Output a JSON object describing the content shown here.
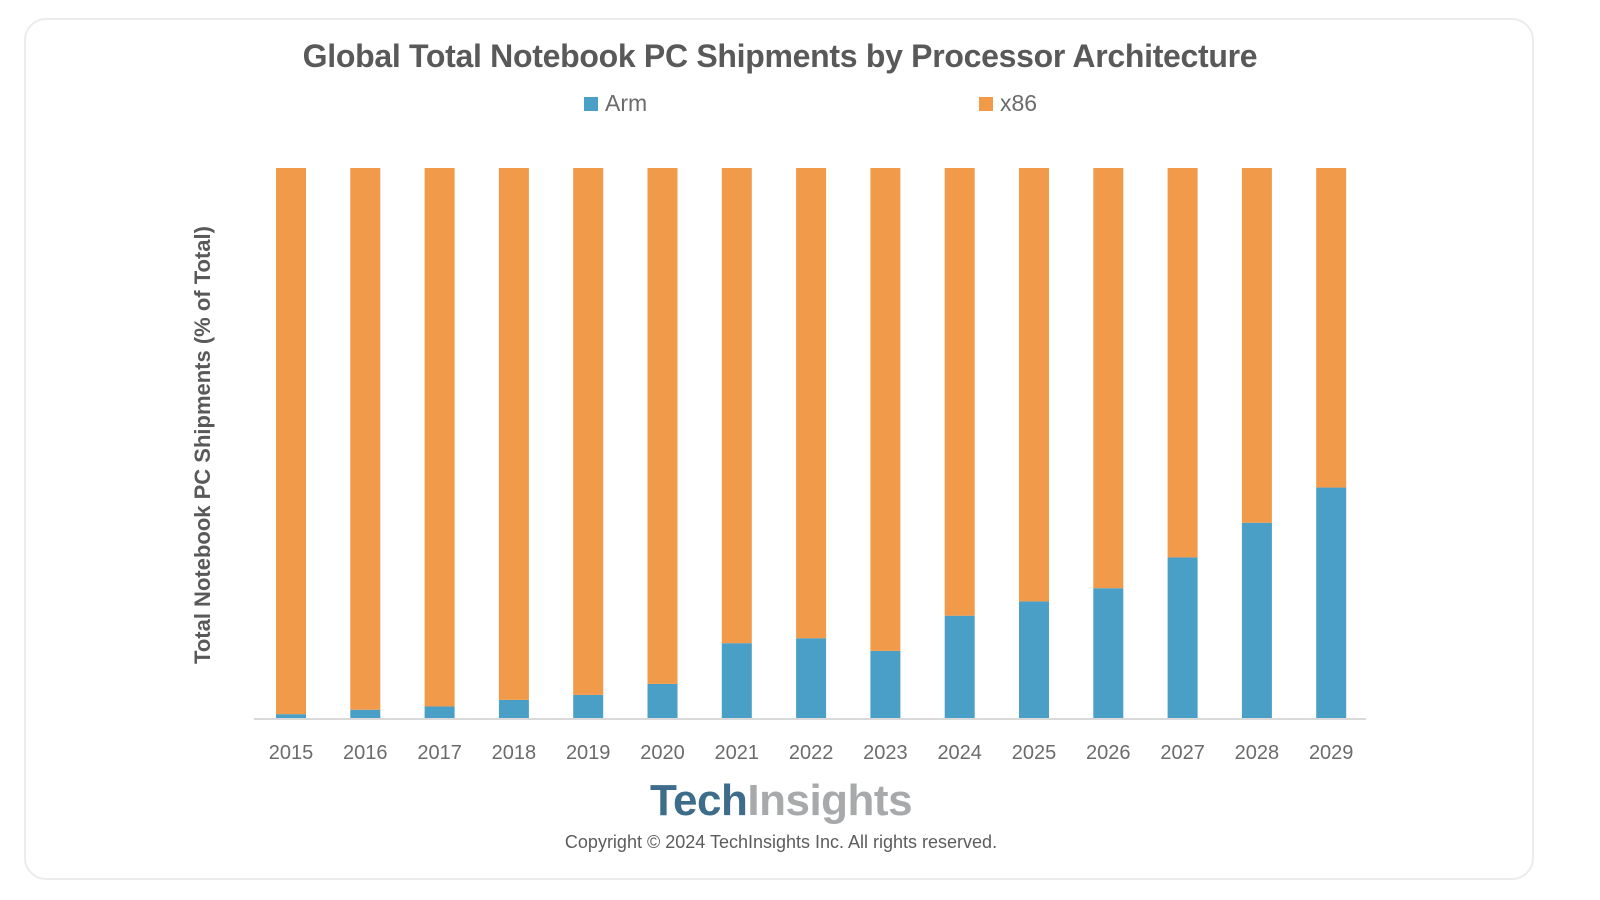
{
  "colors": {
    "arm": "#4a9fc7",
    "x86": "#f09a4a",
    "axis": "#d9d9d9"
  },
  "logo": {
    "part1": "Tech",
    "part2": "Insights"
  },
  "copyright": "Copyright © 2024 TechInsights Inc.  All rights reserved.",
  "chart_data": {
    "type": "bar",
    "stacked": true,
    "normalized": true,
    "title": "Global Total Notebook PC Shipments by Processor Architecture",
    "xlabel": "",
    "ylabel": "Total Notebook PC Shipments (% of Total)",
    "ylim": [
      0,
      100
    ],
    "grid": false,
    "legend": {
      "position": "top",
      "entries": [
        "Arm",
        "x86"
      ]
    },
    "categories": [
      "2015",
      "2016",
      "2017",
      "2018",
      "2019",
      "2020",
      "2021",
      "2022",
      "2023",
      "2024",
      "2025",
      "2026",
      "2027",
      "2028",
      "2029"
    ],
    "series": [
      {
        "name": "Arm",
        "values": [
          0.7,
          1.5,
          2.1,
          3.3,
          4.2,
          6.2,
          13.6,
          14.5,
          12.2,
          18.6,
          21.2,
          23.6,
          29.2,
          35.5,
          41.9
        ]
      },
      {
        "name": "x86",
        "values": [
          99.3,
          98.5,
          97.9,
          96.7,
          95.8,
          93.8,
          86.4,
          85.5,
          87.8,
          81.4,
          78.8,
          76.4,
          70.8,
          64.5,
          58.1
        ]
      }
    ]
  }
}
